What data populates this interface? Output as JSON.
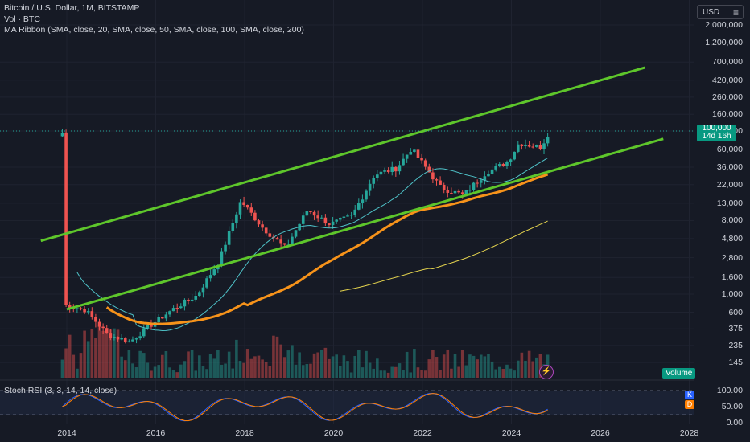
{
  "legend": {
    "title": "Bitcoin / U.S. Dollar, 1M, BITSTAMP",
    "vol": "Vol · BTC",
    "ma_ribbon": "MA Ribbon (SMA, close, 20, SMA, close, 50, SMA, close, 100, SMA, close, 200)",
    "stoch": "Stoch RSI (3, 3, 14, 14, close)"
  },
  "currency": "USD",
  "price_tag": {
    "price": "100,000",
    "countdown": "14d 16h"
  },
  "volume_label": "Volume",
  "rsi_badges": {
    "k": "K",
    "d": "D"
  },
  "colors": {
    "background": "#161a25",
    "up": "#26a69a",
    "down": "#ef5350",
    "channel": "#5ec62b",
    "ma50": "#f7931a",
    "ma100": "#e5d44e",
    "ma20": "#4fc3c9",
    "rsi_k": "#2962ff",
    "rsi_d": "#ff7f00"
  },
  "chart_data": {
    "type": "candlestick",
    "title": "Bitcoin / U.S. Dollar, 1M, BITSTAMP",
    "y_scale": "log",
    "y_ticks": [
      "2,000,000",
      "1,200,000",
      "700,000",
      "420,000",
      "260,000",
      "160,000",
      "100,000",
      "60,000",
      "36,000",
      "22,000",
      "13,000",
      "8,000",
      "4,800",
      "2,800",
      "1,600",
      "1,000",
      "600",
      "375",
      "235",
      "145"
    ],
    "x_ticks": [
      "2014",
      "2016",
      "2018",
      "2020",
      "2022",
      "2024",
      "2026",
      "2028"
    ],
    "rsi_ticks": [
      "100.00",
      "50.00",
      "0.00"
    ],
    "approx_monthly_close": [
      {
        "date": "2013-12",
        "close": 750
      },
      {
        "date": "2014-06",
        "close": 640
      },
      {
        "date": "2014-12",
        "close": 320
      },
      {
        "date": "2015-06",
        "close": 260
      },
      {
        "date": "2015-12",
        "close": 430
      },
      {
        "date": "2016-06",
        "close": 670
      },
      {
        "date": "2016-12",
        "close": 960
      },
      {
        "date": "2017-06",
        "close": 2500
      },
      {
        "date": "2017-12",
        "close": 14000
      },
      {
        "date": "2018-06",
        "close": 6400
      },
      {
        "date": "2018-12",
        "close": 3700
      },
      {
        "date": "2019-06",
        "close": 10800
      },
      {
        "date": "2019-12",
        "close": 7200
      },
      {
        "date": "2020-06",
        "close": 9100
      },
      {
        "date": "2020-12",
        "close": 29000
      },
      {
        "date": "2021-06",
        "close": 35000
      },
      {
        "date": "2021-10",
        "close": 61000
      },
      {
        "date": "2022-06",
        "close": 20000
      },
      {
        "date": "2022-12",
        "close": 16500
      },
      {
        "date": "2023-06",
        "close": 30500
      },
      {
        "date": "2023-12",
        "close": 42000
      },
      {
        "date": "2024-03",
        "close": 71000
      },
      {
        "date": "2024-09",
        "close": 63000
      },
      {
        "date": "2024-11",
        "close": 96000
      }
    ],
    "channel": {
      "upper": [
        {
          "date": "2013-06",
          "price": 4500
        },
        {
          "date": "2027-01",
          "price": 600000
        }
      ],
      "lower": [
        {
          "date": "2014-01",
          "price": 650
        },
        {
          "date": "2027-06",
          "price": 80000
        }
      ]
    },
    "moving_averages": [
      "SMA 20",
      "SMA 50",
      "SMA 100",
      "SMA 200"
    ]
  }
}
